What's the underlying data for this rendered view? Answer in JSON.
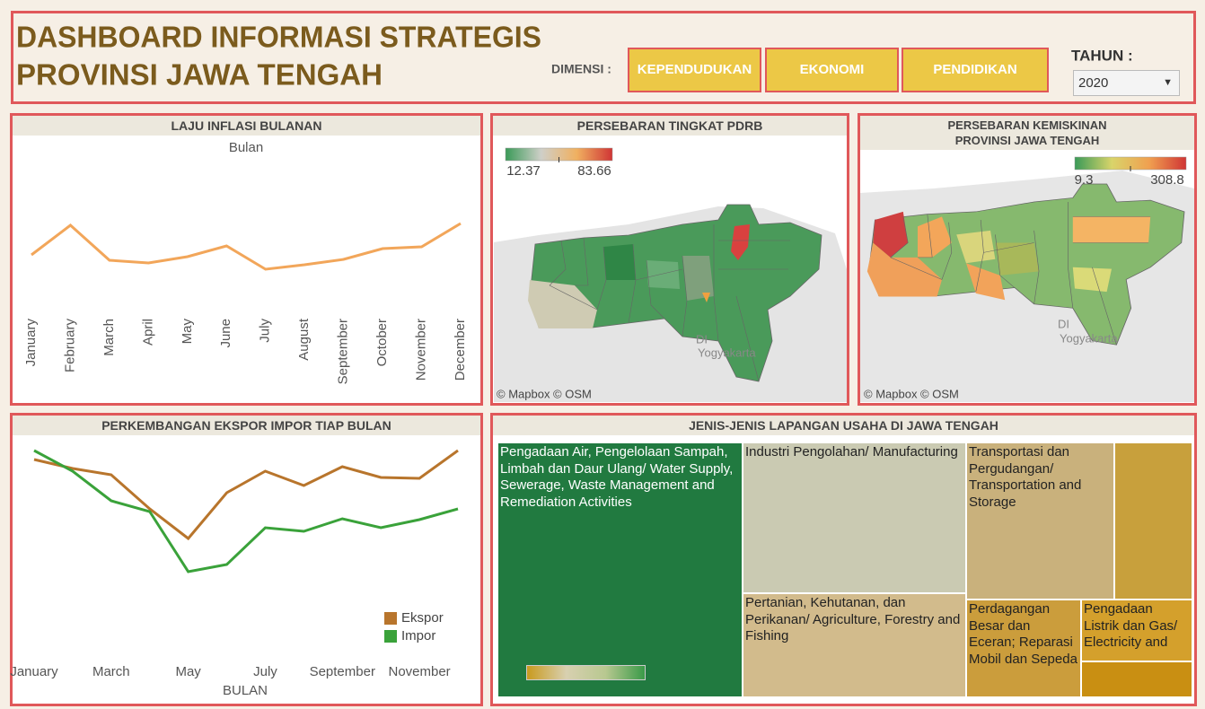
{
  "header": {
    "title": [
      "DASHBOARD INFORMASI STRATEGIS",
      "PROVINSI JAWA TENGAH"
    ],
    "dimension_label": "DIMENSI :",
    "buttons": [
      "KEPENDUDUKAN",
      "EKONOMI",
      "PENDIDIKAN"
    ],
    "year_label": "TAHUN :",
    "year": "2020"
  },
  "chart_data": [
    {
      "type": "line",
      "title": "LAJU INFLASI BULANAN",
      "x_label": "Bulan",
      "categories": [
        "January",
        "February",
        "March",
        "April",
        "May",
        "June",
        "July",
        "August",
        "September",
        "October",
        "November",
        "December"
      ],
      "series": [
        {
          "color": "#f2a65a",
          "values": [
            0.26,
            0.59,
            0.2,
            0.17,
            0.24,
            0.36,
            0.1,
            0.15,
            0.21,
            0.33,
            0.35,
            0.61
          ]
        }
      ],
      "ylim": [
        -0.2,
        1.0
      ]
    },
    {
      "type": "line",
      "title": "PERKEMBANGAN EKSPOR IMPOR TIAP BULAN",
      "x_label": "BULAN",
      "categories": [
        "January",
        null,
        "March",
        null,
        "May",
        null,
        "July",
        null,
        "September",
        null,
        "November",
        null
      ],
      "series": [
        {
          "name": "Ekspor",
          "color": "#b8752c",
          "values": [
            20.8,
            19.8,
            19.1,
            15.3,
            12.0,
            17.1,
            19.5,
            17.9,
            20.0,
            18.8,
            18.7,
            21.8
          ]
        },
        {
          "name": "Impor",
          "color": "#3aa23a",
          "values": [
            21.8,
            19.5,
            16.2,
            15.0,
            8.3,
            9.1,
            13.2,
            12.8,
            14.2,
            13.2,
            14.1,
            15.3
          ]
        }
      ],
      "ylim": [
        0,
        25
      ]
    }
  ],
  "maps": [
    {
      "title": [
        "PERSEBARAN TINGKAT PDRB"
      ],
      "legend": {
        "min": 12.37,
        "max": 83.66,
        "colors": [
          "#3a9a58",
          "#cfcfc8",
          "#f0b060",
          "#d03535"
        ]
      },
      "place_labels": [
        "DI",
        "Yogyakarta"
      ],
      "attribution": "© Mapbox © OSM"
    },
    {
      "title": [
        "PERSEBARAN KEMISKINAN",
        "PROVINSI JAWA TENGAH"
      ],
      "legend": {
        "min": 9.3,
        "max": 308.8,
        "colors": [
          "#3a9a58",
          "#d9d46a",
          "#f0a050",
          "#d03535"
        ]
      },
      "place_labels": [
        "DI",
        "Yogyakarta"
      ],
      "attribution": "© Mapbox © OSM"
    }
  ],
  "treemap": {
    "title": "JENIS-JENIS LAPANGAN USAHA DI JAWA TENGAH",
    "tiles": [
      {
        "label": "Pengadaan Air, Pengelolaan Sampah, Limbah dan Daur Ulang/ Water Supply, Sewerage, Waste Management and Remediation Activities",
        "color": "#217a40"
      },
      {
        "label": "Industri Pengolahan/ Manufacturing",
        "color": "#cacab2"
      },
      {
        "label": "Transportasi dan Pergudangan/ Transportation and Storage",
        "color": "#c9b17c"
      },
      {
        "color": "#c8a03c"
      },
      {
        "label": "Pertanian, Kehutanan, dan Perikanan/ Agriculture, Forestry and Fishing",
        "color": "#d2bb8c"
      },
      {
        "label": "Perdagangan Besar dan Eceran; Reparasi Mobil dan Sepeda",
        "color": "#cb9d3c"
      },
      {
        "label": "Pengadaan Listrik dan Gas/ Electricity and",
        "color": "#d4a02c"
      },
      {
        "color": "#c98f12"
      }
    ],
    "legend_colors": [
      "#c99a1e",
      "#d8d0b0",
      "#b8c890",
      "#3a9a48"
    ]
  }
}
